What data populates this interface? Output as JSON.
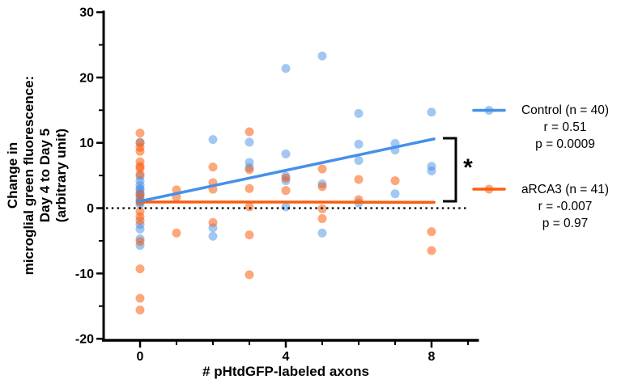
{
  "chart_data": {
    "type": "scatter",
    "title": "",
    "xlabel": "# pHtdGFP-labeled axons",
    "ylabel_lines": [
      "Change in",
      "microglial green fluorescence:",
      "Day 4 to Day 5",
      "(arbitrary unit)"
    ],
    "xlim": [
      -1,
      9.3
    ],
    "ylim": [
      -20,
      30
    ],
    "x_major_ticks": [
      0,
      4,
      8
    ],
    "x_minor_ticks": [
      1,
      2,
      3,
      5,
      6,
      7,
      9
    ],
    "y_major_ticks": [
      30,
      20,
      10,
      0,
      -10,
      -20
    ],
    "y_minor_ticks": [
      25,
      15,
      5,
      -5,
      -15
    ],
    "grid": false,
    "zero_reference_line": {
      "y": 0,
      "style": "dotted",
      "color": "#000000"
    },
    "legend_position": "right",
    "significance_marker": "*",
    "series": [
      {
        "name": "Control",
        "n": 40,
        "r": 0.51,
        "p": 0.0009,
        "color": "#4590E8",
        "dot_opacity": 0.5,
        "trendline": {
          "x1": -0.05,
          "y1": 1.0,
          "x2": 8.07,
          "y2": 10.6
        },
        "points": [
          [
            0,
            10.1
          ],
          [
            0,
            4.9
          ],
          [
            0,
            4.2
          ],
          [
            0,
            3.5
          ],
          [
            0,
            3.0
          ],
          [
            0,
            2.8
          ],
          [
            0,
            2.3
          ],
          [
            0,
            2.0
          ],
          [
            0,
            1.6
          ],
          [
            0,
            1.2
          ],
          [
            0,
            0.9
          ],
          [
            0,
            0.6
          ],
          [
            0,
            -2.5
          ],
          [
            0,
            -3.2
          ],
          [
            0,
            -4.7
          ],
          [
            0,
            -5.7
          ],
          [
            2,
            10.5
          ],
          [
            2,
            -3.0
          ],
          [
            2,
            -4.3
          ],
          [
            3,
            10.1
          ],
          [
            3,
            7.0
          ],
          [
            3,
            6.2
          ],
          [
            4,
            21.4
          ],
          [
            4,
            8.3
          ],
          [
            4,
            4.9
          ],
          [
            4,
            4.2
          ],
          [
            4,
            0.2
          ],
          [
            5,
            23.3
          ],
          [
            5,
            3.7
          ],
          [
            5,
            -3.8
          ],
          [
            6,
            14.5
          ],
          [
            6,
            9.8
          ],
          [
            6,
            7.3
          ],
          [
            6,
            0.8
          ],
          [
            7,
            9.9
          ],
          [
            7,
            8.9
          ],
          [
            7,
            2.2
          ],
          [
            8,
            14.7
          ],
          [
            8,
            6.4
          ],
          [
            8,
            5.7
          ]
        ]
      },
      {
        "name": "aRCA3",
        "n": 41,
        "r": -0.007,
        "p": 0.97,
        "color": "#FA5E10",
        "dot_opacity": 0.55,
        "trendline": {
          "x1": -0.07,
          "y1": 0.95,
          "x2": 8.07,
          "y2": 0.9
        },
        "points": [
          [
            0,
            11.5
          ],
          [
            0,
            10.0
          ],
          [
            0,
            9.3
          ],
          [
            0,
            8.7
          ],
          [
            0,
            7.1
          ],
          [
            0,
            6.4
          ],
          [
            0,
            6.1
          ],
          [
            0,
            5.2
          ],
          [
            0,
            2.1
          ],
          [
            0,
            1.0
          ],
          [
            0,
            -0.5
          ],
          [
            0,
            -1.3
          ],
          [
            0,
            -1.9
          ],
          [
            0,
            -5.1
          ],
          [
            0,
            -9.3
          ],
          [
            0,
            -13.8
          ],
          [
            0,
            -15.6
          ],
          [
            1,
            2.8
          ],
          [
            1,
            1.7
          ],
          [
            1,
            -3.8
          ],
          [
            2,
            6.3
          ],
          [
            2,
            3.9
          ],
          [
            2,
            2.9
          ],
          [
            2,
            -2.2
          ],
          [
            3,
            11.7
          ],
          [
            3,
            5.9
          ],
          [
            3,
            3.0
          ],
          [
            3,
            0.2
          ],
          [
            3,
            -4.1
          ],
          [
            3,
            -10.2
          ],
          [
            4,
            4.6
          ],
          [
            4,
            2.7
          ],
          [
            5,
            6.0
          ],
          [
            5,
            3.3
          ],
          [
            5,
            -0.1
          ],
          [
            5,
            -1.6
          ],
          [
            6,
            4.4
          ],
          [
            6,
            1.3
          ],
          [
            7,
            4.2
          ],
          [
            8,
            -3.6
          ],
          [
            8,
            -6.5
          ]
        ]
      }
    ],
    "legend": [
      {
        "label": "Control (n = 40)",
        "r_text": "r = 0.51",
        "p_text": "p = 0.0009"
      },
      {
        "label": "aRCA3 (n = 41)",
        "r_text": "r = -0.007",
        "p_text": "p = 0.97"
      }
    ]
  }
}
